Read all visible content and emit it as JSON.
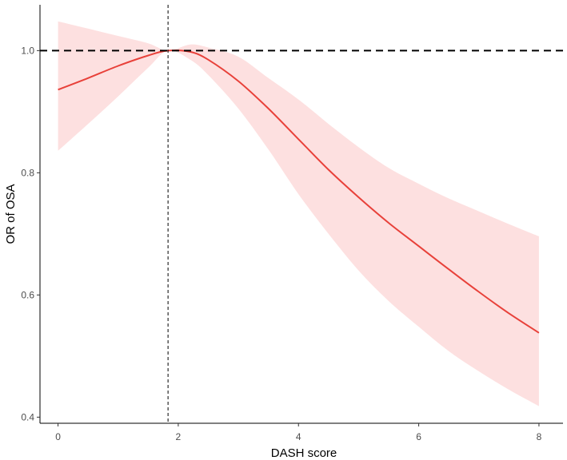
{
  "chart_data": {
    "type": "line",
    "title": "",
    "xlabel": "DASH score",
    "ylabel": "OR of OSA",
    "xlim": [
      -0.3,
      8.4
    ],
    "ylim": [
      0.39,
      1.075
    ],
    "x_ticks": [
      0,
      2,
      4,
      6,
      8
    ],
    "y_ticks": [
      0.4,
      0.6,
      0.8,
      1.0
    ],
    "x_tick_labels": [
      "0",
      "2",
      "4",
      "6",
      "8"
    ],
    "y_tick_labels": [
      "0.4",
      "0.6",
      "0.8",
      "1.0"
    ],
    "grid": false,
    "legend": "none",
    "reference_lines": {
      "horizontal_y": 1.0,
      "vertical_x": 1.83
    },
    "colors": {
      "line": "#e8413a",
      "band": "#fde0e0",
      "reference": "#000000"
    },
    "series": [
      {
        "x": [
          0,
          0.5,
          1.0,
          1.5,
          1.83,
          2.2,
          2.5,
          3.0,
          3.5,
          4.0,
          4.5,
          5.0,
          5.5,
          6.0,
          6.5,
          7.0,
          7.5,
          8.0
        ],
        "y": [
          0.936,
          0.955,
          0.975,
          0.992,
          1.0,
          0.998,
          0.985,
          0.95,
          0.905,
          0.855,
          0.805,
          0.76,
          0.718,
          0.68,
          0.642,
          0.605,
          0.57,
          0.538
        ],
        "lower": [
          0.836,
          0.88,
          0.925,
          0.972,
          1.0,
          0.985,
          0.96,
          0.905,
          0.838,
          0.765,
          0.7,
          0.64,
          0.59,
          0.548,
          0.508,
          0.475,
          0.445,
          0.418
        ],
        "upper": [
          1.048,
          1.036,
          1.024,
          1.012,
          1.0,
          1.01,
          1.005,
          0.99,
          0.955,
          0.92,
          0.88,
          0.842,
          0.808,
          0.782,
          0.758,
          0.737,
          0.716,
          0.696
        ]
      }
    ]
  }
}
